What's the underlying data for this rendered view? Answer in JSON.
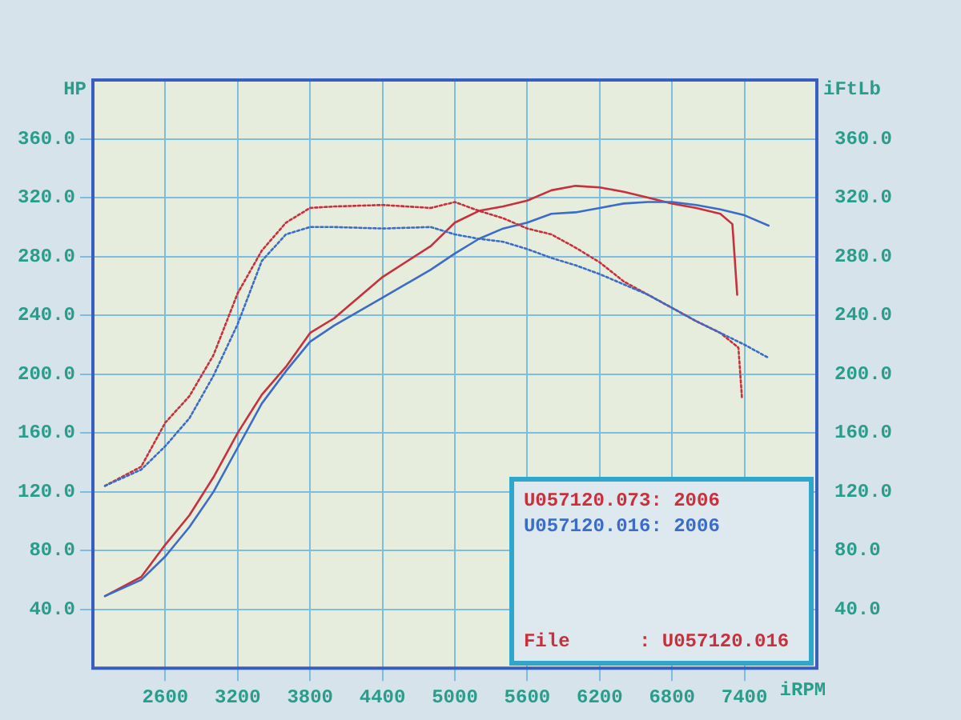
{
  "chart_data": {
    "type": "line",
    "xlabel": "iRPM",
    "ylabel": "HP",
    "y2label": "iFtLb",
    "xlim": [
      2000,
      8000
    ],
    "xticks": [
      2600,
      3200,
      3800,
      4400,
      5000,
      5600,
      6200,
      6800,
      7400
    ],
    "ylim": [
      0,
      400
    ],
    "yticks": [
      {
        "value": 40,
        "label": "40.0"
      },
      {
        "value": 80,
        "label": "80.0"
      },
      {
        "value": 120,
        "label": "120.0"
      },
      {
        "value": 160,
        "label": "160.0"
      },
      {
        "value": 200,
        "label": "200.0"
      },
      {
        "value": 240,
        "label": "240.0"
      },
      {
        "value": 280,
        "label": "280.0"
      },
      {
        "value": 320,
        "label": "320.0"
      },
      {
        "value": 360,
        "label": "360.0"
      }
    ],
    "y2lim": [
      0,
      400
    ],
    "y2ticks": [
      {
        "value": 40,
        "label": "40.0"
      },
      {
        "value": 80,
        "label": "80.0"
      },
      {
        "value": 120,
        "label": "120.0"
      },
      {
        "value": 160,
        "label": "160.0"
      },
      {
        "value": 200,
        "label": "200.0"
      },
      {
        "value": 240,
        "label": "240.0"
      },
      {
        "value": 280,
        "label": "280.0"
      },
      {
        "value": 320,
        "label": "320.0"
      },
      {
        "value": 360,
        "label": "360.0"
      }
    ],
    "grid": true,
    "legend": "bottom right",
    "marker": "none",
    "annotations": [
      "File      : U057120.016"
    ],
    "series": [
      {
        "name": "U057120.073: 2006",
        "color": "#c8303c",
        "line_style": "solid",
        "x": [
          2100,
          2400,
          2600,
          2800,
          3000,
          3200,
          3400,
          3600,
          3800,
          4000,
          4400,
          4800,
          5000,
          5200,
          5400,
          5600,
          5800,
          6000,
          6200,
          6400,
          6600,
          6800,
          7000,
          7200,
          7300,
          7340
        ],
        "values": [
          49,
          62,
          84,
          104,
          130,
          160,
          186,
          205,
          228,
          238,
          266,
          287,
          303,
          311,
          314,
          318,
          325,
          328,
          327,
          324,
          320,
          316,
          313,
          309,
          302,
          254
        ]
      },
      {
        "name": "U057120.016: 2006",
        "color": "#3a6cc8",
        "line_style": "solid",
        "x": [
          2100,
          2400,
          2600,
          2800,
          3000,
          3200,
          3400,
          3600,
          3800,
          4000,
          4400,
          4800,
          5000,
          5200,
          5400,
          5600,
          5800,
          6000,
          6200,
          6400,
          6600,
          6800,
          7000,
          7200,
          7400,
          7600
        ],
        "values": [
          49,
          60,
          76,
          96,
          120,
          150,
          180,
          202,
          222,
          233,
          252,
          271,
          282,
          292,
          299,
          303,
          309,
          310,
          313,
          316,
          317,
          317,
          315,
          312,
          308,
          301
        ]
      },
      {
        "color": "#c8303c",
        "line_style": "dotted",
        "x": [
          2100,
          2400,
          2600,
          2800,
          3000,
          3200,
          3400,
          3600,
          3800,
          4000,
          4400,
          4800,
          5000,
          5200,
          5400,
          5600,
          5800,
          6000,
          6200,
          6400,
          6600,
          6800,
          7000,
          7200,
          7350,
          7380
        ],
        "values": [
          124,
          137,
          167,
          185,
          213,
          255,
          284,
          303,
          313,
          314,
          315,
          313,
          317,
          311,
          306,
          299,
          295,
          286,
          276,
          263,
          254,
          245,
          236,
          228,
          218,
          183
        ]
      },
      {
        "color": "#3a6cc8",
        "line_style": "dotted",
        "x": [
          2100,
          2400,
          2600,
          2800,
          3000,
          3200,
          3400,
          3600,
          3800,
          4000,
          4400,
          4800,
          5000,
          5200,
          5400,
          5600,
          5800,
          6000,
          6200,
          6400,
          6600,
          6800,
          7000,
          7200,
          7400,
          7600
        ],
        "values": [
          124,
          135,
          151,
          170,
          199,
          234,
          277,
          295,
          300,
          300,
          299,
          300,
          295,
          292,
          290,
          285,
          279,
          274,
          268,
          261,
          254,
          245,
          236,
          228,
          220,
          211
        ]
      }
    ]
  }
}
